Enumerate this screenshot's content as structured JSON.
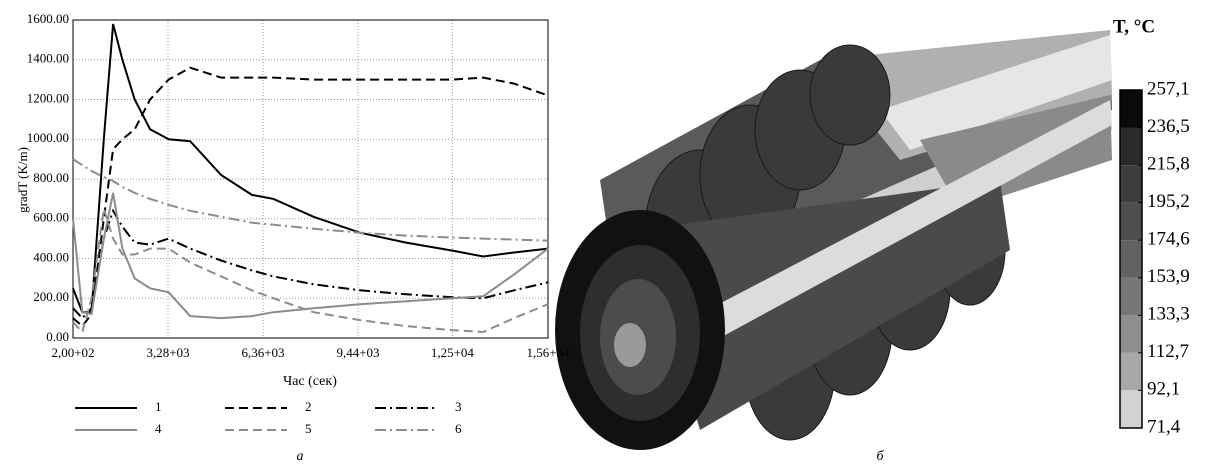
{
  "chart_data": [
    {
      "type": "line",
      "x_label": "Час (сек)",
      "y_label": "gradT (K/m)",
      "x": [
        200,
        500,
        800,
        1200,
        1500,
        1800,
        2200,
        2700,
        3300,
        4000,
        5000,
        6000,
        6700,
        8000,
        9500,
        11000,
        12500,
        13500,
        14500,
        15600
      ],
      "series": [
        {
          "name": "1",
          "color": "#000000",
          "line_style": "solid",
          "values": [
            250,
            130,
            130,
            1000,
            1580,
            1400,
            1200,
            1050,
            1000,
            990,
            820,
            720,
            700,
            610,
            530,
            480,
            440,
            410,
            430,
            450
          ]
        },
        {
          "name": "2",
          "color": "#000000",
          "line_style": "dashed",
          "values": [
            100,
            60,
            120,
            600,
            950,
            1000,
            1050,
            1200,
            1300,
            1360,
            1310,
            1310,
            1310,
            1300,
            1300,
            1300,
            1300,
            1310,
            1280,
            1220
          ]
        },
        {
          "name": "3",
          "color": "#000000",
          "line_style": "dashdot",
          "values": [
            150,
            100,
            150,
            500,
            640,
            560,
            480,
            470,
            500,
            450,
            390,
            340,
            310,
            270,
            240,
            220,
            205,
            200,
            240,
            280
          ]
        },
        {
          "name": "4",
          "color": "#8c8c8c",
          "line_style": "solid",
          "values": [
            600,
            130,
            120,
            500,
            730,
            450,
            300,
            250,
            230,
            110,
            100,
            110,
            130,
            150,
            170,
            185,
            200,
            210,
            320,
            450
          ]
        },
        {
          "name": "5",
          "color": "#8c8c8c",
          "line_style": "dashed",
          "values": [
            80,
            30,
            200,
            650,
            500,
            420,
            420,
            450,
            450,
            380,
            310,
            240,
            200,
            130,
            90,
            60,
            40,
            30,
            100,
            170
          ]
        },
        {
          "name": "6",
          "color": "#8c8c8c",
          "line_style": "dashdot",
          "values": [
            900,
            870,
            840,
            810,
            790,
            760,
            730,
            700,
            670,
            640,
            610,
            580,
            570,
            550,
            530,
            515,
            505,
            500,
            495,
            490
          ]
        }
      ],
      "xlim": [
        200,
        15600
      ],
      "xticks": [
        {
          "value": 200,
          "label": "2,00+02"
        },
        {
          "value": 3280,
          "label": "3,28+03"
        },
        {
          "value": 6360,
          "label": "6,36+03"
        },
        {
          "value": 9440,
          "label": "9,44+03"
        },
        {
          "value": 12500,
          "label": "1,25+04"
        },
        {
          "value": 15600,
          "label": "1,56+04"
        }
      ],
      "ylim": [
        0,
        1600
      ],
      "yticks": [
        {
          "value": 0,
          "label": "0.00"
        },
        {
          "value": 200,
          "label": "200.00"
        },
        {
          "value": 400,
          "label": "400.00"
        },
        {
          "value": 600,
          "label": "600.00"
        },
        {
          "value": 800,
          "label": "800.00"
        },
        {
          "value": 1000,
          "label": "1000.00"
        },
        {
          "value": 1200,
          "label": "1200.00"
        },
        {
          "value": 1400,
          "label": "1400.00"
        },
        {
          "value": 1600,
          "label": "1600.00"
        }
      ],
      "grid": true,
      "legend": "bottom"
    },
    {
      "type": "colorbar",
      "title": "T, °C",
      "ylim": [
        71.4,
        257.1
      ],
      "yticks": [
        {
          "value": 257.1,
          "label": "257,1"
        },
        {
          "value": 236.5,
          "label": "236,5"
        },
        {
          "value": 215.8,
          "label": "215,8"
        },
        {
          "value": 195.2,
          "label": "195,2"
        },
        {
          "value": 174.6,
          "label": "174,6"
        },
        {
          "value": 153.9,
          "label": "153,9"
        },
        {
          "value": 133.3,
          "label": "133,3"
        },
        {
          "value": 112.7,
          "label": "112,7"
        },
        {
          "value": 92.1,
          "label": "92,1"
        },
        {
          "value": 71.4,
          "label": "71,4"
        }
      ],
      "colors": [
        "#0a0a0a",
        "#2a2a2a",
        "#3c3c3c",
        "#4e4e4e",
        "#626262",
        "#777777",
        "#8e8e8e",
        "#a8a8a8",
        "#d2d2d2",
        "#ffffff"
      ]
    }
  ],
  "figure_labels": [
    "а",
    "б"
  ]
}
